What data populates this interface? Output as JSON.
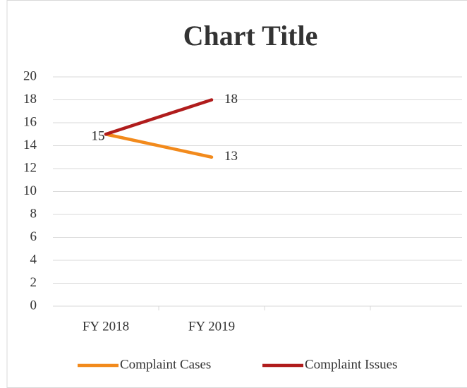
{
  "chart_data": {
    "type": "line",
    "title": "Chart Title",
    "categories": [
      "FY 2018",
      "FY 2019",
      null,
      null
    ],
    "series": [
      {
        "name": "Complaint Cases",
        "color": "#f28a1c",
        "values": [
          15,
          13,
          null,
          null
        ]
      },
      {
        "name": "Complaint Issues",
        "color": "#b01c1c",
        "values": [
          15,
          18,
          null,
          null
        ]
      }
    ],
    "ylim": [
      0,
      20
    ],
    "yticks": [
      0,
      2,
      4,
      6,
      8,
      10,
      12,
      14,
      16,
      18,
      20
    ],
    "grid": true,
    "legend": "bottom"
  }
}
